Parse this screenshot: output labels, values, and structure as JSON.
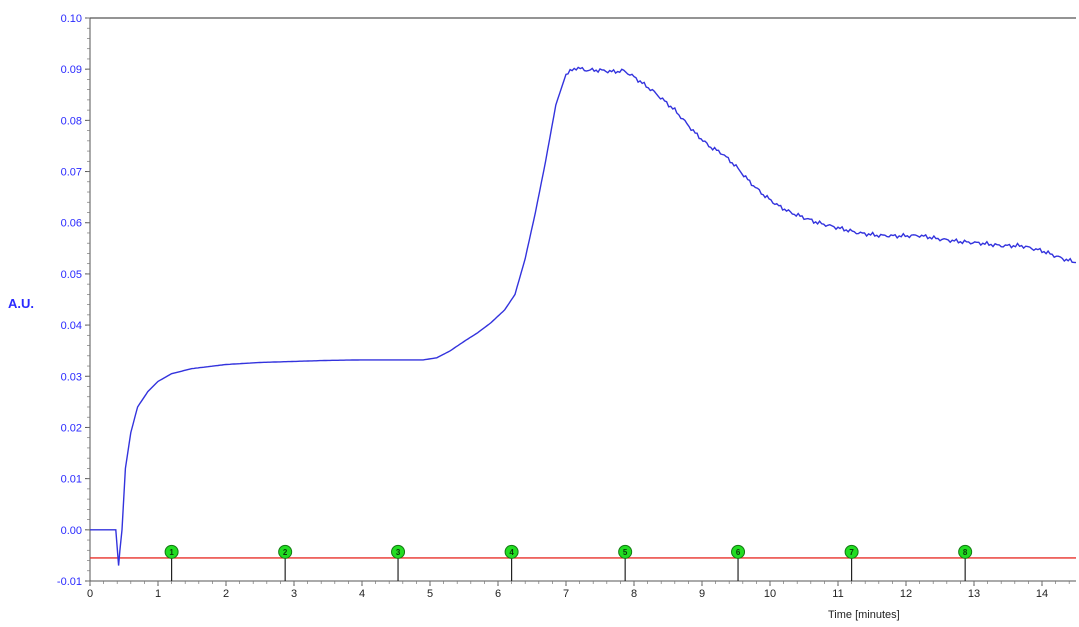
{
  "chart_data": {
    "type": "line",
    "xlabel": "Time [minutes]",
    "ylabel": "A.U.",
    "xlim": [
      0,
      14.5
    ],
    "ylim": [
      -0.01,
      0.1
    ],
    "x_ticks": [
      "0",
      "1",
      "2",
      "3",
      "4",
      "5",
      "6",
      "7",
      "8",
      "9",
      "10",
      "11",
      "12",
      "13",
      "14"
    ],
    "y_ticks": [
      "0.10",
      "0.09",
      "0.08",
      "0.07",
      "0.06",
      "0.05",
      "0.04",
      "0.03",
      "0.02",
      "0.01",
      "0.00",
      "-0.01"
    ],
    "colors": {
      "trace": "#3333dd",
      "event_line": "#e8302a",
      "marker": "#22dd22",
      "axis_text": "#2a2aff"
    },
    "event_line_y": -0.0055,
    "event_markers": [
      {
        "label": "1",
        "x": 1.2
      },
      {
        "label": "2",
        "x": 2.87
      },
      {
        "label": "3",
        "x": 4.53
      },
      {
        "label": "4",
        "x": 6.2
      },
      {
        "label": "5",
        "x": 7.87
      },
      {
        "label": "6",
        "x": 9.53
      },
      {
        "label": "7",
        "x": 11.2
      },
      {
        "label": "8",
        "x": 12.87
      }
    ],
    "series": [
      {
        "x": [
          0,
          0.38,
          0.42,
          0.44,
          0.47,
          0.52,
          0.6,
          0.7,
          0.85,
          1.0,
          1.2,
          1.5,
          2.0,
          2.5,
          3.0,
          3.5,
          4.0,
          4.5,
          4.9,
          5.1,
          5.3,
          5.5,
          5.7,
          5.9,
          6.1,
          6.25,
          6.4,
          6.55,
          6.7,
          6.85,
          7.0,
          7.15,
          7.3,
          7.5,
          7.7,
          7.85,
          8.0,
          8.3,
          8.6,
          8.9,
          9.1,
          9.3,
          9.5,
          9.7,
          9.9,
          10.1,
          10.3,
          10.5,
          10.7,
          11.0,
          11.3,
          11.6,
          11.9,
          12.2,
          12.5,
          12.8,
          13.1,
          13.4,
          13.7,
          14.0,
          14.3,
          14.5
        ],
        "y": [
          0.0,
          0.0,
          -0.007,
          -0.004,
          0.0,
          0.012,
          0.019,
          0.024,
          0.027,
          0.029,
          0.0305,
          0.0315,
          0.0323,
          0.0327,
          0.0329,
          0.0331,
          0.0332,
          0.0332,
          0.0332,
          0.0336,
          0.035,
          0.0368,
          0.0385,
          0.0405,
          0.043,
          0.046,
          0.053,
          0.062,
          0.072,
          0.083,
          0.089,
          0.0903,
          0.0898,
          0.0898,
          0.0895,
          0.0897,
          0.0885,
          0.0855,
          0.082,
          0.0775,
          0.075,
          0.0735,
          0.071,
          0.068,
          0.0655,
          0.0635,
          0.062,
          0.061,
          0.06,
          0.059,
          0.058,
          0.0575,
          0.0574,
          0.0575,
          0.0568,
          0.0563,
          0.056,
          0.0555,
          0.0555,
          0.0545,
          0.053,
          0.0522
        ]
      }
    ]
  }
}
